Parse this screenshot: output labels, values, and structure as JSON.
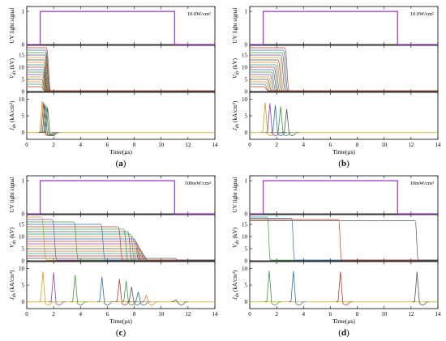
{
  "chart_data": [
    {
      "panel_label": "(a)",
      "type": "line",
      "intensity_label": "10.0W/cm²",
      "x_axis": {
        "label": "Time(µs)",
        "range": [
          0,
          14
        ],
        "ticks": [
          0,
          2,
          4,
          6,
          8,
          10,
          12,
          14
        ]
      },
      "subplots": [
        {
          "id": "uv",
          "ylabel": "UV light signal",
          "ylim": [
            0,
            1.15
          ],
          "yticks": [
            0,
            1
          ],
          "uv_pulse": {
            "start": 1.0,
            "end": 11.0,
            "level": 1,
            "color": "#9933cc"
          }
        },
        {
          "id": "voltage",
          "ylabel": "V_ds (kV)",
          "ylim": [
            0,
            19
          ],
          "yticks": [
            0,
            5,
            10,
            15
          ],
          "series": [
            {
              "level": 18,
              "drop_start": 1.45,
              "fall": 0.35,
              "color": "#c0392b"
            },
            {
              "level": 17,
              "drop_start": 1.4,
              "fall": 0.35,
              "color": "#2c6fbb"
            },
            {
              "level": 16,
              "drop_start": 1.38,
              "fall": 0.35,
              "color": "#3d9a3d"
            },
            {
              "level": 15,
              "drop_start": 1.35,
              "fall": 0.35,
              "color": "#8e44ad"
            },
            {
              "level": 14,
              "drop_start": 1.33,
              "fall": 0.35,
              "color": "#d4a017"
            },
            {
              "level": 13,
              "drop_start": 1.3,
              "fall": 0.35,
              "color": "#555555"
            },
            {
              "level": 12,
              "drop_start": 1.28,
              "fall": 0.35,
              "color": "#e67e22"
            },
            {
              "level": 11,
              "drop_start": 1.25,
              "fall": 0.35,
              "color": "#16a085"
            },
            {
              "level": 10,
              "drop_start": 1.23,
              "fall": 0.35,
              "color": "#c0392b"
            },
            {
              "level": 9,
              "drop_start": 1.2,
              "fall": 0.35,
              "color": "#2c6fbb"
            },
            {
              "level": 8,
              "drop_start": 1.18,
              "fall": 0.35,
              "color": "#3d9a3d"
            },
            {
              "level": 7,
              "drop_start": 1.15,
              "fall": 0.35,
              "color": "#8e44ad"
            },
            {
              "level": 6,
              "drop_start": 1.13,
              "fall": 0.35,
              "color": "#d4a017"
            },
            {
              "level": 5,
              "drop_start": 1.1,
              "fall": 0.35,
              "color": "#555555"
            },
            {
              "level": 4,
              "drop_start": 1.08,
              "fall": 0.35,
              "color": "#e67e22"
            },
            {
              "level": 3,
              "drop_start": 1.05,
              "fall": 0.35,
              "color": "#16a085"
            },
            {
              "level": 2,
              "drop_start": 1.03,
              "fall": 0.35,
              "color": "#c0392b"
            }
          ]
        },
        {
          "id": "current",
          "ylabel": "J_ds (kA/cm²)",
          "ylim": [
            -2,
            12
          ],
          "yticks": [
            0,
            5,
            10
          ],
          "pulses": [
            {
              "t": 1.15,
              "peak": 9.5,
              "color": "#d4a017"
            },
            {
              "t": 1.25,
              "peak": 9.0,
              "color": "#c0392b"
            },
            {
              "t": 1.35,
              "peak": 8.5,
              "color": "#2c6fbb"
            },
            {
              "t": 1.45,
              "peak": 8.0,
              "color": "#3d9a3d"
            },
            {
              "t": 1.55,
              "peak": 7.5,
              "color": "#555555"
            }
          ]
        }
      ]
    },
    {
      "panel_label": "(b)",
      "type": "line",
      "intensity_label": "10.0W/cm²",
      "x_axis": {
        "label": "Time(µs)",
        "range": [
          0,
          14
        ],
        "ticks": [
          0,
          2,
          4,
          6,
          8,
          10,
          12,
          14
        ]
      },
      "subplots": [
        {
          "id": "uv",
          "ylabel": "UV light signal",
          "ylim": [
            0,
            1.15
          ],
          "yticks": [
            0,
            1
          ],
          "uv_pulse": {
            "start": 1.0,
            "end": 11.0,
            "level": 1,
            "color": "#9933cc"
          }
        },
        {
          "id": "voltage",
          "ylabel": "V_ds (kV)",
          "ylim": [
            0,
            19
          ],
          "yticks": [
            0,
            5,
            10,
            15
          ],
          "series": [
            {
              "level": 18,
              "drop_start": 2.6,
              "fall": 0.35,
              "color": "#c0392b"
            },
            {
              "level": 17,
              "drop_start": 2.5,
              "fall": 0.35,
              "color": "#2c6fbb"
            },
            {
              "level": 16,
              "drop_start": 2.4,
              "fall": 0.35,
              "color": "#3d9a3d"
            },
            {
              "level": 15,
              "drop_start": 2.3,
              "fall": 0.35,
              "color": "#8e44ad"
            },
            {
              "level": 14,
              "drop_start": 2.2,
              "fall": 0.35,
              "color": "#d4a017"
            },
            {
              "level": 13,
              "drop_start": 2.1,
              "fall": 0.35,
              "color": "#555555"
            },
            {
              "level": 12,
              "drop_start": 2.0,
              "fall": 0.35,
              "color": "#e67e22"
            },
            {
              "level": 11,
              "drop_start": 1.9,
              "fall": 0.35,
              "color": "#16a085"
            },
            {
              "level": 10,
              "drop_start": 1.8,
              "fall": 0.35,
              "color": "#c0392b"
            },
            {
              "level": 9,
              "drop_start": 1.7,
              "fall": 0.35,
              "color": "#2c6fbb"
            },
            {
              "level": 8,
              "drop_start": 1.6,
              "fall": 0.35,
              "color": "#3d9a3d"
            },
            {
              "level": 7,
              "drop_start": 1.5,
              "fall": 0.35,
              "color": "#8e44ad"
            },
            {
              "level": 6,
              "drop_start": 1.4,
              "fall": 0.35,
              "color": "#d4a017"
            },
            {
              "level": 5,
              "drop_start": 1.3,
              "fall": 0.35,
              "color": "#555555"
            },
            {
              "level": 4,
              "drop_start": 1.2,
              "fall": 0.35,
              "color": "#e67e22"
            },
            {
              "level": 3,
              "drop_start": 1.1,
              "fall": 0.35,
              "color": "#16a085"
            },
            {
              "level": 2,
              "drop_start": 1.05,
              "fall": 0.35,
              "color": "#c0392b"
            }
          ]
        },
        {
          "id": "current",
          "ylabel": "J_ds (kA/cm²)",
          "ylim": [
            -2,
            12
          ],
          "yticks": [
            0,
            5,
            10
          ],
          "pulses": [
            {
              "t": 1.15,
              "peak": 9.0,
              "color": "#d4a017"
            },
            {
              "t": 1.5,
              "peak": 8.8,
              "color": "#8e44ad"
            },
            {
              "t": 1.9,
              "peak": 8.2,
              "color": "#2c6fbb"
            },
            {
              "t": 2.3,
              "peak": 7.8,
              "color": "#3d9a3d"
            },
            {
              "t": 2.75,
              "peak": 7.0,
              "color": "#555555"
            }
          ]
        }
      ]
    },
    {
      "panel_label": "(c)",
      "type": "line",
      "intensity_label": "100mW/cm²",
      "x_axis": {
        "label": "Time(µs)",
        "range": [
          0,
          14
        ],
        "ticks": [
          0,
          2,
          4,
          6,
          8,
          10,
          12,
          14
        ]
      },
      "subplots": [
        {
          "id": "uv",
          "ylabel": "UV light signal",
          "ylim": [
            0,
            1.15
          ],
          "yticks": [
            0,
            1
          ],
          "uv_pulse": {
            "start": 1.0,
            "end": 11.0,
            "level": 1,
            "color": "#9933cc"
          }
        },
        {
          "id": "voltage",
          "ylabel": "V_ds (kV)",
          "ylim": [
            0,
            19
          ],
          "yticks": [
            0,
            5,
            10,
            15
          ],
          "series": [
            {
              "level": 18,
              "drop_start": 1.1,
              "fall": 0.35,
              "color": "#d4a017"
            },
            {
              "level": 17,
              "drop_start": 1.9,
              "fall": 0.35,
              "color": "#8e44ad"
            },
            {
              "level": 16,
              "drop_start": 3.5,
              "fall": 0.35,
              "color": "#3d9a3d"
            },
            {
              "level": 15,
              "drop_start": 5.5,
              "fall": 0.35,
              "color": "#2c6fbb"
            },
            {
              "level": 14,
              "drop_start": 6.8,
              "fall": 0.35,
              "color": "#c0392b"
            },
            {
              "level": 13,
              "drop_start": 7.2,
              "fall": 0.35,
              "color": "#3d9a3d"
            },
            {
              "level": 12,
              "drop_start": 7.5,
              "fall": 0.35,
              "color": "#555555"
            },
            {
              "level": 11,
              "drop_start": 7.7,
              "fall": 0.35,
              "color": "#16a085"
            },
            {
              "level": 10,
              "drop_start": 7.85,
              "fall": 0.35,
              "color": "#e67e22"
            },
            {
              "level": 9,
              "drop_start": 8.0,
              "fall": 0.35,
              "color": "#2c6fbb"
            },
            {
              "level": 8,
              "drop_start": 8.1,
              "fall": 0.35,
              "color": "#c0392b"
            },
            {
              "level": 7,
              "drop_start": 8.2,
              "fall": 0.35,
              "color": "#8e44ad"
            },
            {
              "level": 6,
              "drop_start": 8.3,
              "fall": 0.35,
              "color": "#d4a017"
            },
            {
              "level": 5,
              "drop_start": 8.4,
              "fall": 0.35,
              "color": "#555555"
            },
            {
              "level": 4,
              "drop_start": 8.5,
              "fall": 0.35,
              "color": "#e67e22"
            },
            {
              "level": 3,
              "drop_start": 8.6,
              "fall": 0.35,
              "color": "#16a085"
            },
            {
              "level": 2,
              "drop_start": 8.7,
              "fall": 0.35,
              "color": "#c0392b"
            },
            {
              "level": 1,
              "drop_start": 11.0,
              "fall": 0.35,
              "color": "#555555"
            }
          ]
        },
        {
          "id": "current",
          "ylabel": "J_ds (kA/cm²)",
          "ylim": [
            -2,
            12
          ],
          "yticks": [
            0,
            5,
            10
          ],
          "pulses": [
            {
              "t": 1.2,
              "peak": 9.0,
              "color": "#d4a017"
            },
            {
              "t": 2.0,
              "peak": 8.8,
              "color": "#8e44ad"
            },
            {
              "t": 3.6,
              "peak": 8.0,
              "color": "#3d9a3d"
            },
            {
              "t": 5.6,
              "peak": 7.5,
              "color": "#2c6fbb"
            },
            {
              "t": 6.9,
              "peak": 6.8,
              "color": "#c0392b"
            },
            {
              "t": 7.4,
              "peak": 6.2,
              "color": "#3d9a3d"
            },
            {
              "t": 7.8,
              "peak": 4.5,
              "color": "#555555"
            },
            {
              "t": 8.3,
              "peak": 3.0,
              "color": "#2c6fbb"
            },
            {
              "t": 8.9,
              "peak": 2.0,
              "color": "#e67e22"
            },
            {
              "t": 11.1,
              "peak": 0.6,
              "color": "#555555"
            }
          ]
        }
      ]
    },
    {
      "panel_label": "(d)",
      "type": "line",
      "intensity_label": "10mW/cm²",
      "x_axis": {
        "label": "Time(µs)",
        "range": [
          0,
          14
        ],
        "ticks": [
          0,
          2,
          4,
          6,
          8,
          10,
          12,
          14
        ]
      },
      "subplots": [
        {
          "id": "uv",
          "ylabel": "UV light signal",
          "ylim": [
            0,
            1.15
          ],
          "yticks": [
            0,
            1
          ],
          "uv_pulse": {
            "start": 1.0,
            "end": 11.0,
            "level": 1,
            "color": "#9933cc"
          }
        },
        {
          "id": "voltage",
          "ylabel": "V_ds (kV)",
          "ylim": [
            0,
            19
          ],
          "yticks": [
            0,
            5,
            10,
            15
          ],
          "series": [
            {
              "level": 18,
              "drop_start": 1.3,
              "fall": 0.25,
              "color": "#3d9a3d"
            },
            {
              "level": 17.5,
              "drop_start": 3.1,
              "fall": 0.25,
              "color": "#2c6fbb"
            },
            {
              "level": 17,
              "drop_start": 6.6,
              "fall": 0.25,
              "color": "#c0392b"
            },
            {
              "level": 16.5,
              "drop_start": 12.3,
              "fall": 0.25,
              "color": "#555555"
            }
          ]
        },
        {
          "id": "current",
          "ylabel": "J_ds (kA/cm²)",
          "ylim": [
            -2,
            12
          ],
          "yticks": [
            0,
            5,
            10
          ],
          "pulses": [
            {
              "t": 1.45,
              "peak": 9.3,
              "color": "#3d9a3d"
            },
            {
              "t": 3.25,
              "peak": 9.2,
              "color": "#2c6fbb"
            },
            {
              "t": 6.75,
              "peak": 9.0,
              "color": "#c0392b"
            },
            {
              "t": 12.45,
              "peak": 9.0,
              "color": "#555555"
            }
          ]
        }
      ]
    }
  ]
}
